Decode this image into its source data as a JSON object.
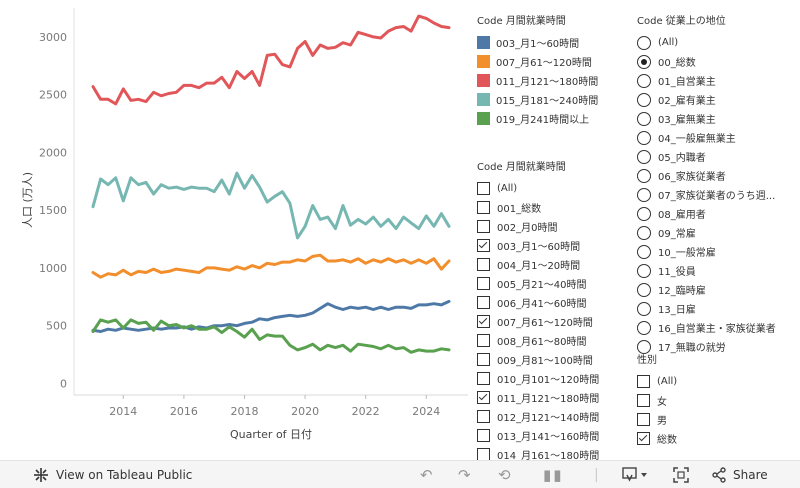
{
  "chart_data": {
    "type": "line",
    "xlabel": "Quarter of 日付",
    "ylabel": "人口 (万人)",
    "ylim": [
      -100,
      3250
    ],
    "y_ticks": [
      0,
      500,
      1000,
      1500,
      2000,
      2500,
      3000
    ],
    "x_ticks": [
      "2014",
      "2016",
      "2018",
      "2020",
      "2022",
      "2024"
    ],
    "x_range": [
      "2013Q1",
      "2024Q4"
    ],
    "x": [
      "2013Q1",
      "2013Q2",
      "2013Q3",
      "2013Q4",
      "2014Q1",
      "2014Q2",
      "2014Q3",
      "2014Q4",
      "2015Q1",
      "2015Q2",
      "2015Q3",
      "2015Q4",
      "2016Q1",
      "2016Q2",
      "2016Q3",
      "2016Q4",
      "2017Q1",
      "2017Q2",
      "2017Q3",
      "2017Q4",
      "2018Q1",
      "2018Q2",
      "2018Q3",
      "2018Q4",
      "2019Q1",
      "2019Q2",
      "2019Q3",
      "2019Q4",
      "2020Q1",
      "2020Q2",
      "2020Q3",
      "2020Q4",
      "2021Q1",
      "2021Q2",
      "2021Q3",
      "2021Q4",
      "2022Q1",
      "2022Q2",
      "2022Q3",
      "2022Q4",
      "2023Q1",
      "2023Q2",
      "2023Q3",
      "2023Q4",
      "2024Q1",
      "2024Q2",
      "2024Q3",
      "2024Q4"
    ],
    "grid": false,
    "legend": "right",
    "series": [
      {
        "name": "003_月1～60時間",
        "color": "#4e79a7",
        "values": [
          460,
          450,
          470,
          460,
          480,
          470,
          460,
          470,
          480,
          470,
          480,
          480,
          490,
          470,
          490,
          480,
          500,
          500,
          510,
          500,
          520,
          530,
          560,
          550,
          570,
          580,
          590,
          580,
          590,
          610,
          650,
          690,
          660,
          640,
          660,
          650,
          660,
          640,
          660,
          640,
          660,
          660,
          650,
          680,
          680,
          690,
          680,
          710
        ]
      },
      {
        "name": "007_月61～120時間",
        "color": "#f28e2b",
        "values": [
          960,
          920,
          950,
          940,
          980,
          940,
          970,
          960,
          990,
          960,
          970,
          990,
          980,
          970,
          960,
          1000,
          1000,
          990,
          980,
          1010,
          990,
          1020,
          1000,
          1040,
          1030,
          1050,
          1050,
          1070,
          1060,
          1100,
          1110,
          1060,
          1060,
          1070,
          1050,
          1080,
          1040,
          1070,
          1050,
          1080,
          1050,
          1070,
          1040,
          1070,
          1040,
          1080,
          990,
          1060
        ]
      },
      {
        "name": "011_月121～180時間",
        "color": "#e15759",
        "values": [
          2570,
          2460,
          2460,
          2420,
          2550,
          2450,
          2460,
          2440,
          2520,
          2490,
          2510,
          2520,
          2580,
          2580,
          2560,
          2600,
          2600,
          2650,
          2560,
          2700,
          2640,
          2700,
          2580,
          2840,
          2850,
          2760,
          2740,
          2900,
          2960,
          2840,
          2930,
          2900,
          2910,
          2950,
          2930,
          3040,
          3020,
          3000,
          2990,
          3050,
          3080,
          3090,
          3050,
          3180,
          3160,
          3120,
          3090,
          3080
        ]
      },
      {
        "name": "015_月181～240時間",
        "color": "#76b7b2",
        "values": [
          1530,
          1770,
          1720,
          1780,
          1580,
          1780,
          1720,
          1740,
          1640,
          1720,
          1690,
          1700,
          1680,
          1700,
          1690,
          1690,
          1660,
          1760,
          1640,
          1820,
          1690,
          1800,
          1700,
          1570,
          1620,
          1660,
          1560,
          1260,
          1360,
          1540,
          1420,
          1440,
          1340,
          1540,
          1370,
          1420,
          1380,
          1440,
          1360,
          1420,
          1340,
          1440,
          1390,
          1340,
          1450,
          1360,
          1470,
          1360
        ]
      },
      {
        "name": "019_月241時間以上",
        "color": "#59a14f",
        "values": [
          450,
          550,
          530,
          550,
          480,
          550,
          520,
          530,
          460,
          540,
          500,
          510,
          480,
          500,
          470,
          470,
          490,
          440,
          490,
          450,
          400,
          470,
          380,
          420,
          410,
          410,
          330,
          290,
          310,
          340,
          290,
          330,
          310,
          330,
          280,
          340,
          330,
          320,
          300,
          330,
          300,
          310,
          270,
          290,
          280,
          280,
          300,
          290
        ]
      }
    ]
  },
  "legend": {
    "title": "Code 月間就業時間",
    "items": [
      {
        "label": "003_月1～60時間",
        "color": "#4e79a7"
      },
      {
        "label": "007_月61～120時間",
        "color": "#f28e2b"
      },
      {
        "label": "011_月121～180時間",
        "color": "#e15759"
      },
      {
        "label": "015_月181～240時間",
        "color": "#76b7b2"
      },
      {
        "label": "019_月241時間以上",
        "color": "#59a14f"
      }
    ]
  },
  "hours_filter": {
    "title": "Code 月間就業時間",
    "items": [
      {
        "label": "(All)",
        "checked": false
      },
      {
        "label": "001_総数",
        "checked": false
      },
      {
        "label": "002_月0時間",
        "checked": false
      },
      {
        "label": "003_月1～60時間",
        "checked": true
      },
      {
        "label": "004_月1～20時間",
        "checked": false
      },
      {
        "label": "005_月21～40時間",
        "checked": false
      },
      {
        "label": "006_月41～60時間",
        "checked": false
      },
      {
        "label": "007_月61～120時間",
        "checked": true
      },
      {
        "label": "008_月61～80時間",
        "checked": false
      },
      {
        "label": "009_月81～100時間",
        "checked": false
      },
      {
        "label": "010_月101～120時間",
        "checked": false
      },
      {
        "label": "011_月121～180時間",
        "checked": true
      },
      {
        "label": "012_月121～140時間",
        "checked": false
      },
      {
        "label": "013_月141～160時間",
        "checked": false
      },
      {
        "label": "014_月161～180時間",
        "checked": false
      }
    ]
  },
  "status_filter": {
    "title": "Code 従業上の地位",
    "items": [
      {
        "label": "(All)",
        "selected": false
      },
      {
        "label": "00_総数",
        "selected": true
      },
      {
        "label": "01_自営業主",
        "selected": false
      },
      {
        "label": "02_雇有業主",
        "selected": false
      },
      {
        "label": "03_雇無業主",
        "selected": false
      },
      {
        "label": "04_一般雇無業主",
        "selected": false
      },
      {
        "label": "05_内職者",
        "selected": false
      },
      {
        "label": "06_家族従業者",
        "selected": false
      },
      {
        "label": "07_家族従業者のうち週...",
        "selected": false
      },
      {
        "label": "08_雇用者",
        "selected": false
      },
      {
        "label": "09_常雇",
        "selected": false
      },
      {
        "label": "10_一般常雇",
        "selected": false
      },
      {
        "label": "11_役員",
        "selected": false
      },
      {
        "label": "12_臨時雇",
        "selected": false
      },
      {
        "label": "13_日雇",
        "selected": false
      },
      {
        "label": "16_自営業主・家族従業者",
        "selected": false
      },
      {
        "label": "17_無職の就労",
        "selected": false
      }
    ]
  },
  "sex_filter": {
    "title": "性別",
    "items": [
      {
        "label": "(All)",
        "checked": false
      },
      {
        "label": "女",
        "checked": false
      },
      {
        "label": "男",
        "checked": false
      },
      {
        "label": "総数",
        "checked": true
      }
    ]
  },
  "footer": {
    "view_label": "View on Tableau Public",
    "share_label": "Share",
    "icons": [
      "tableau-logo-icon",
      "undo-icon",
      "redo-icon",
      "revert-icon",
      "pause-icon",
      "download-icon",
      "fullscreen-icon",
      "share-icon"
    ]
  }
}
